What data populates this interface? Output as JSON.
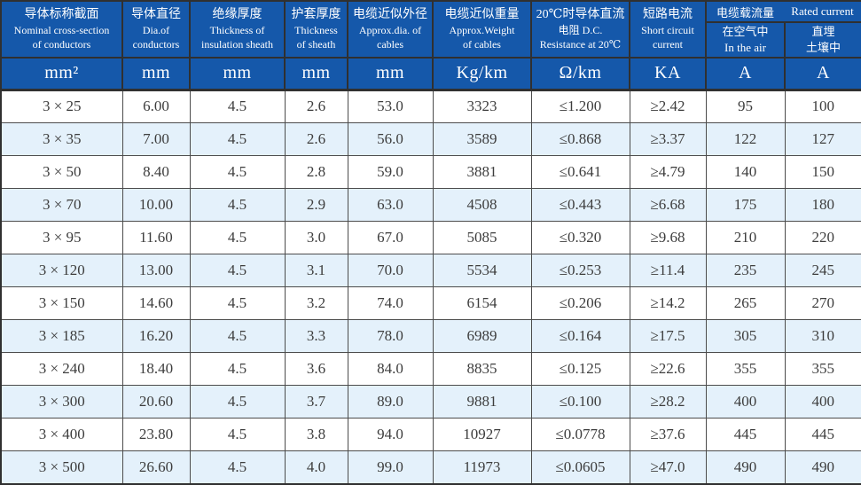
{
  "colors": {
    "header_bg": "#1558aa",
    "header_text": "#ffffff",
    "row_bg": "#ffffff",
    "row_alt_bg": "#e4f1fb",
    "grid_line": "#4c4c4c",
    "frame": "#303030",
    "data_text": "#3d3d3d"
  },
  "table": {
    "header": {
      "columns": [
        {
          "zh": "导体标称截面",
          "en": "Nominal cross-section\nof conductors"
        },
        {
          "zh": "导体直径",
          "en": "Dia.of\nconductors"
        },
        {
          "zh": "绝缘厚度",
          "en": "Thickness of\ninsulation sheath"
        },
        {
          "zh": "护套厚度",
          "en": "Thickness\nof sheath"
        },
        {
          "zh": "电缆近似外径",
          "en": "Approx.dia. of\ncables"
        },
        {
          "zh": "电缆近似重量",
          "en": "Approx.Weight\nof cables"
        },
        {
          "zh": "20℃时导体直流",
          "en": "电阻 D.C.\nResistance at 20℃"
        },
        {
          "zh": "短路电流",
          "en": "Short circuit\ncurrent"
        }
      ],
      "group": {
        "zh": "电缆载流量",
        "en": "Rated current"
      },
      "sub_columns": [
        {
          "zh": "在空气中",
          "en": "In the air"
        },
        {
          "zh": "直埋",
          "en": "土壤中"
        }
      ]
    },
    "units": [
      "mm²",
      "mm",
      "mm",
      "mm",
      "mm",
      "Kg/km",
      "Ω/km",
      "KA",
      "A",
      "A"
    ],
    "column_keys": [
      "cross-section",
      "conductor-diameter",
      "insulation-thickness",
      "sheath-thickness",
      "approx-diameter",
      "approx-weight",
      "dc-resistance",
      "short-circuit-current",
      "current-in-air",
      "current-buried"
    ],
    "rows": [
      [
        "3 × 25",
        "6.00",
        "4.5",
        "2.6",
        "53.0",
        "3323",
        "≤1.200",
        "≥2.42",
        "95",
        "100"
      ],
      [
        "3 × 35",
        "7.00",
        "4.5",
        "2.6",
        "56.0",
        "3589",
        "≤0.868",
        "≥3.37",
        "122",
        "127"
      ],
      [
        "3 × 50",
        "8.40",
        "4.5",
        "2.8",
        "59.0",
        "3881",
        "≤0.641",
        "≥4.79",
        "140",
        "150"
      ],
      [
        "3 × 70",
        "10.00",
        "4.5",
        "2.9",
        "63.0",
        "4508",
        "≤0.443",
        "≥6.68",
        "175",
        "180"
      ],
      [
        "3 × 95",
        "11.60",
        "4.5",
        "3.0",
        "67.0",
        "5085",
        "≤0.320",
        "≥9.68",
        "210",
        "220"
      ],
      [
        "3 × 120",
        "13.00",
        "4.5",
        "3.1",
        "70.0",
        "5534",
        "≤0.253",
        "≥11.4",
        "235",
        "245"
      ],
      [
        "3 × 150",
        "14.60",
        "4.5",
        "3.2",
        "74.0",
        "6154",
        "≤0.206",
        "≥14.2",
        "265",
        "270"
      ],
      [
        "3 × 185",
        "16.20",
        "4.5",
        "3.3",
        "78.0",
        "6989",
        "≤0.164",
        "≥17.5",
        "305",
        "310"
      ],
      [
        "3 × 240",
        "18.40",
        "4.5",
        "3.6",
        "84.0",
        "8835",
        "≤0.125",
        "≥22.6",
        "355",
        "355"
      ],
      [
        "3 × 300",
        "20.60",
        "4.5",
        "3.7",
        "89.0",
        "9881",
        "≤0.100",
        "≥28.2",
        "400",
        "400"
      ],
      [
        "3 × 400",
        "23.80",
        "4.5",
        "3.8",
        "94.0",
        "10927",
        "≤0.0778",
        "≥37.6",
        "445",
        "445"
      ],
      [
        "3 × 500",
        "26.60",
        "4.5",
        "4.0",
        "99.0",
        "11973",
        "≤0.0605",
        "≥47.0",
        "490",
        "490"
      ]
    ]
  }
}
